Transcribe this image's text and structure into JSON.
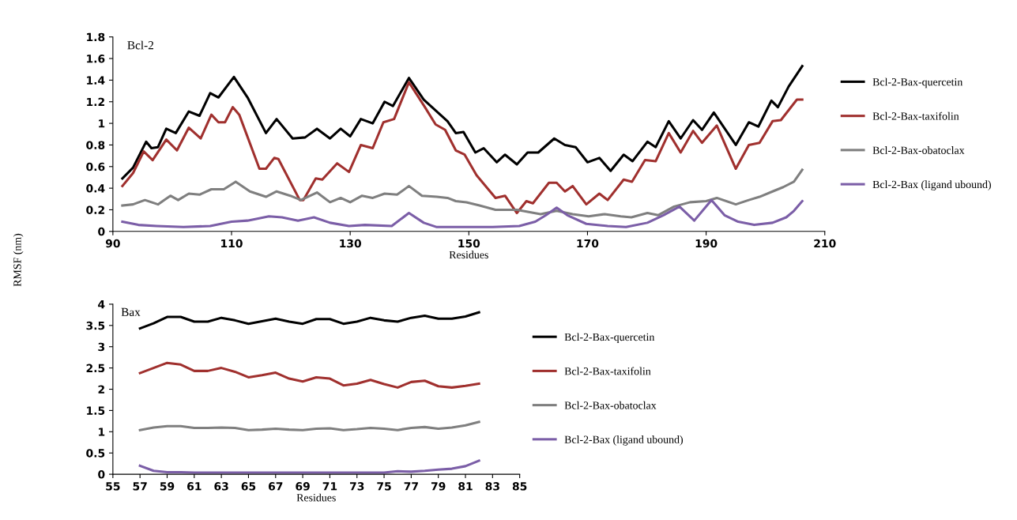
{
  "chart_data": [
    {
      "type": "line",
      "title": "Bcl-2",
      "xlabel": "Residues",
      "ylabel": "RMSF (nm)",
      "xlim": [
        90,
        210
      ],
      "xticks": [
        90,
        110,
        130,
        150,
        170,
        190,
        210
      ],
      "ylim": [
        0,
        1.8
      ],
      "yticks": [
        0,
        0.2,
        0.4,
        0.6,
        0.8,
        1,
        1.2,
        1.4,
        1.6,
        1.8
      ],
      "grid": false,
      "legend": "right",
      "marker": "none",
      "line_style": "solid",
      "series": [
        {
          "name": "Bcl-2-Bax-quercetin",
          "color": "#000000",
          "x": [
            91.6,
            93.4,
            95.6,
            96.5,
            97.6,
            99,
            100.6,
            102.8,
            104.6,
            106.4,
            107.8,
            110.4,
            112.7,
            115.8,
            117.6,
            120.3,
            122.4,
            124.4,
            126.6,
            128.4,
            130,
            131.8,
            133.8,
            135.8,
            137.2,
            139.9,
            142.4,
            144.6,
            146.4,
            147.8,
            149.1,
            151.1,
            152.5,
            154.7,
            156.1,
            158.1,
            159.9,
            161.7,
            164.4,
            166.2,
            168,
            170,
            172,
            173.9,
            176.1,
            177.6,
            180.1,
            181.5,
            183.7,
            185.7,
            187.8,
            189.3,
            191.3,
            195,
            197.2,
            198.8,
            201,
            202.1,
            203.9,
            206.2
          ],
          "values": [
            0.49,
            0.59,
            0.83,
            0.77,
            0.78,
            0.95,
            0.91,
            1.11,
            1.07,
            1.28,
            1.24,
            1.43,
            1.24,
            0.91,
            1.04,
            0.86,
            0.87,
            0.95,
            0.86,
            0.95,
            0.88,
            1.04,
            1.0,
            1.2,
            1.16,
            1.42,
            1.22,
            1.11,
            1.02,
            0.91,
            0.92,
            0.73,
            0.77,
            0.64,
            0.71,
            0.62,
            0.73,
            0.73,
            0.86,
            0.8,
            0.78,
            0.64,
            0.68,
            0.56,
            0.71,
            0.65,
            0.83,
            0.78,
            1.02,
            0.86,
            1.03,
            0.94,
            1.1,
            0.8,
            1.01,
            0.97,
            1.21,
            1.15,
            1.34,
            1.53
          ]
        },
        {
          "name": "Bcl-2-Bax-taxifolin",
          "color": "#a0302e",
          "x": [
            91.6,
            93.4,
            95.2,
            96.7,
            99,
            100.8,
            102.8,
            104.8,
            106.6,
            107.8,
            108.9,
            110.2,
            111.3,
            114.7,
            115.8,
            117.2,
            117.9,
            121.5,
            122.1,
            124.2,
            125.3,
            127.8,
            129.8,
            131.8,
            133.8,
            135.6,
            137.4,
            139.9,
            142.6,
            144.4,
            146,
            147.8,
            149.3,
            151.3,
            154.5,
            156.1,
            158.1,
            159.7,
            160.8,
            163.5,
            164.8,
            166.2,
            167.5,
            169.8,
            172,
            173.4,
            176.1,
            177.5,
            179.7,
            181.5,
            183.7,
            185.7,
            187.8,
            189.3,
            191.8,
            195,
            197.2,
            199,
            201.2,
            202.6,
            205.3,
            206.2
          ],
          "values": [
            0.42,
            0.54,
            0.74,
            0.66,
            0.85,
            0.75,
            0.96,
            0.86,
            1.08,
            1.01,
            1.01,
            1.15,
            1.08,
            0.58,
            0.58,
            0.68,
            0.67,
            0.29,
            0.29,
            0.49,
            0.48,
            0.63,
            0.55,
            0.8,
            0.77,
            1.01,
            1.04,
            1.38,
            1.15,
            0.99,
            0.94,
            0.75,
            0.71,
            0.52,
            0.31,
            0.33,
            0.17,
            0.28,
            0.26,
            0.45,
            0.45,
            0.37,
            0.42,
            0.25,
            0.35,
            0.29,
            0.48,
            0.46,
            0.66,
            0.65,
            0.91,
            0.73,
            0.93,
            0.82,
            0.98,
            0.58,
            0.8,
            0.82,
            1.02,
            1.03,
            1.22,
            1.22
          ]
        },
        {
          "name": "Bcl-2-Bax-obatoclax",
          "color": "#7f7f7f",
          "x": [
            91.6,
            93.4,
            95.4,
            97.6,
            99.7,
            101,
            102.8,
            104.6,
            106.6,
            108.7,
            110.7,
            113.1,
            115.8,
            117.6,
            119.9,
            121.7,
            124.4,
            126.6,
            128.4,
            130,
            132,
            133.8,
            135.8,
            137.9,
            139.9,
            142.1,
            144.6,
            146.4,
            147.8,
            149.6,
            151.8,
            154.5,
            158.1,
            162.1,
            164.8,
            167.5,
            170.2,
            172.9,
            175.6,
            177.4,
            180.1,
            181.9,
            184.6,
            187.3,
            190,
            191.8,
            195,
            197.2,
            199,
            201.2,
            203,
            204.8,
            206.2
          ],
          "values": [
            0.24,
            0.25,
            0.29,
            0.25,
            0.33,
            0.29,
            0.35,
            0.34,
            0.39,
            0.39,
            0.46,
            0.37,
            0.32,
            0.37,
            0.33,
            0.29,
            0.36,
            0.27,
            0.31,
            0.27,
            0.33,
            0.31,
            0.35,
            0.34,
            0.42,
            0.33,
            0.32,
            0.31,
            0.28,
            0.27,
            0.24,
            0.2,
            0.2,
            0.16,
            0.19,
            0.16,
            0.14,
            0.16,
            0.14,
            0.13,
            0.17,
            0.15,
            0.23,
            0.27,
            0.28,
            0.31,
            0.25,
            0.29,
            0.32,
            0.37,
            0.41,
            0.46,
            0.57
          ]
        },
        {
          "name": "Bcl-2-Bax (ligand ubound)",
          "color": "#7b5ea7",
          "x": [
            91.6,
            94.3,
            97.4,
            101.9,
            106.4,
            110,
            112.7,
            116.3,
            118.5,
            121.2,
            123.9,
            126.6,
            129.8,
            132.5,
            137,
            139.9,
            142.4,
            144.6,
            149.6,
            154,
            158.5,
            161.2,
            163,
            164.8,
            166.6,
            169.8,
            173.4,
            176.5,
            180.1,
            182.8,
            185.5,
            188,
            190.9,
            193.1,
            195.4,
            198.1,
            201.2,
            203.5,
            204.8,
            206.2
          ],
          "values": [
            0.09,
            0.06,
            0.05,
            0.04,
            0.05,
            0.09,
            0.1,
            0.14,
            0.13,
            0.1,
            0.13,
            0.08,
            0.05,
            0.06,
            0.05,
            0.17,
            0.08,
            0.04,
            0.04,
            0.04,
            0.05,
            0.09,
            0.15,
            0.22,
            0.15,
            0.07,
            0.05,
            0.04,
            0.08,
            0.15,
            0.23,
            0.1,
            0.29,
            0.15,
            0.09,
            0.06,
            0.08,
            0.13,
            0.19,
            0.28
          ]
        }
      ]
    },
    {
      "type": "line",
      "title": "Bax",
      "xlabel": "Residues",
      "xlim": [
        55,
        85
      ],
      "xticks": [
        55,
        57,
        59,
        61,
        63,
        65,
        67,
        69,
        71,
        73,
        75,
        77,
        79,
        81,
        83,
        85
      ],
      "ylim": [
        0,
        4
      ],
      "yticks": [
        0,
        0.5,
        1,
        1.5,
        2,
        2.5,
        3,
        3.5,
        4
      ],
      "grid": false,
      "legend": "right",
      "marker": "none",
      "line_style": "solid",
      "x": [
        57,
        58,
        59,
        60,
        61,
        62,
        63,
        64,
        65,
        66,
        67,
        68,
        69,
        70,
        71,
        72,
        73,
        74,
        75,
        76,
        77,
        78,
        79,
        80,
        81,
        82
      ],
      "series": [
        {
          "name": "Bcl-2-Bax-quercetin",
          "color": "#000000",
          "values": [
            3.43,
            3.55,
            3.7,
            3.7,
            3.59,
            3.59,
            3.68,
            3.62,
            3.54,
            3.6,
            3.66,
            3.59,
            3.54,
            3.65,
            3.65,
            3.54,
            3.59,
            3.68,
            3.62,
            3.59,
            3.68,
            3.73,
            3.66,
            3.66,
            3.71,
            3.81
          ]
        },
        {
          "name": "Bcl-2-Bax-taxifolin",
          "color": "#a0302e",
          "values": [
            2.38,
            2.5,
            2.62,
            2.58,
            2.43,
            2.43,
            2.5,
            2.41,
            2.28,
            2.33,
            2.39,
            2.25,
            2.18,
            2.28,
            2.25,
            2.09,
            2.13,
            2.22,
            2.12,
            2.04,
            2.17,
            2.2,
            2.07,
            2.04,
            2.08,
            2.13
          ]
        },
        {
          "name": "Bcl-2-Bax-obatoclax",
          "color": "#7f7f7f",
          "values": [
            1.04,
            1.1,
            1.13,
            1.13,
            1.09,
            1.09,
            1.1,
            1.09,
            1.04,
            1.05,
            1.07,
            1.05,
            1.04,
            1.07,
            1.08,
            1.04,
            1.06,
            1.09,
            1.07,
            1.04,
            1.09,
            1.11,
            1.07,
            1.1,
            1.15,
            1.23
          ]
        },
        {
          "name": "Bcl-2-Bax (ligand ubound)",
          "color": "#7b5ea7",
          "values": [
            0.2,
            0.08,
            0.05,
            0.05,
            0.04,
            0.04,
            0.04,
            0.04,
            0.04,
            0.04,
            0.04,
            0.04,
            0.04,
            0.04,
            0.04,
            0.04,
            0.04,
            0.04,
            0.04,
            0.07,
            0.06,
            0.08,
            0.11,
            0.13,
            0.19,
            0.32
          ]
        }
      ]
    }
  ]
}
